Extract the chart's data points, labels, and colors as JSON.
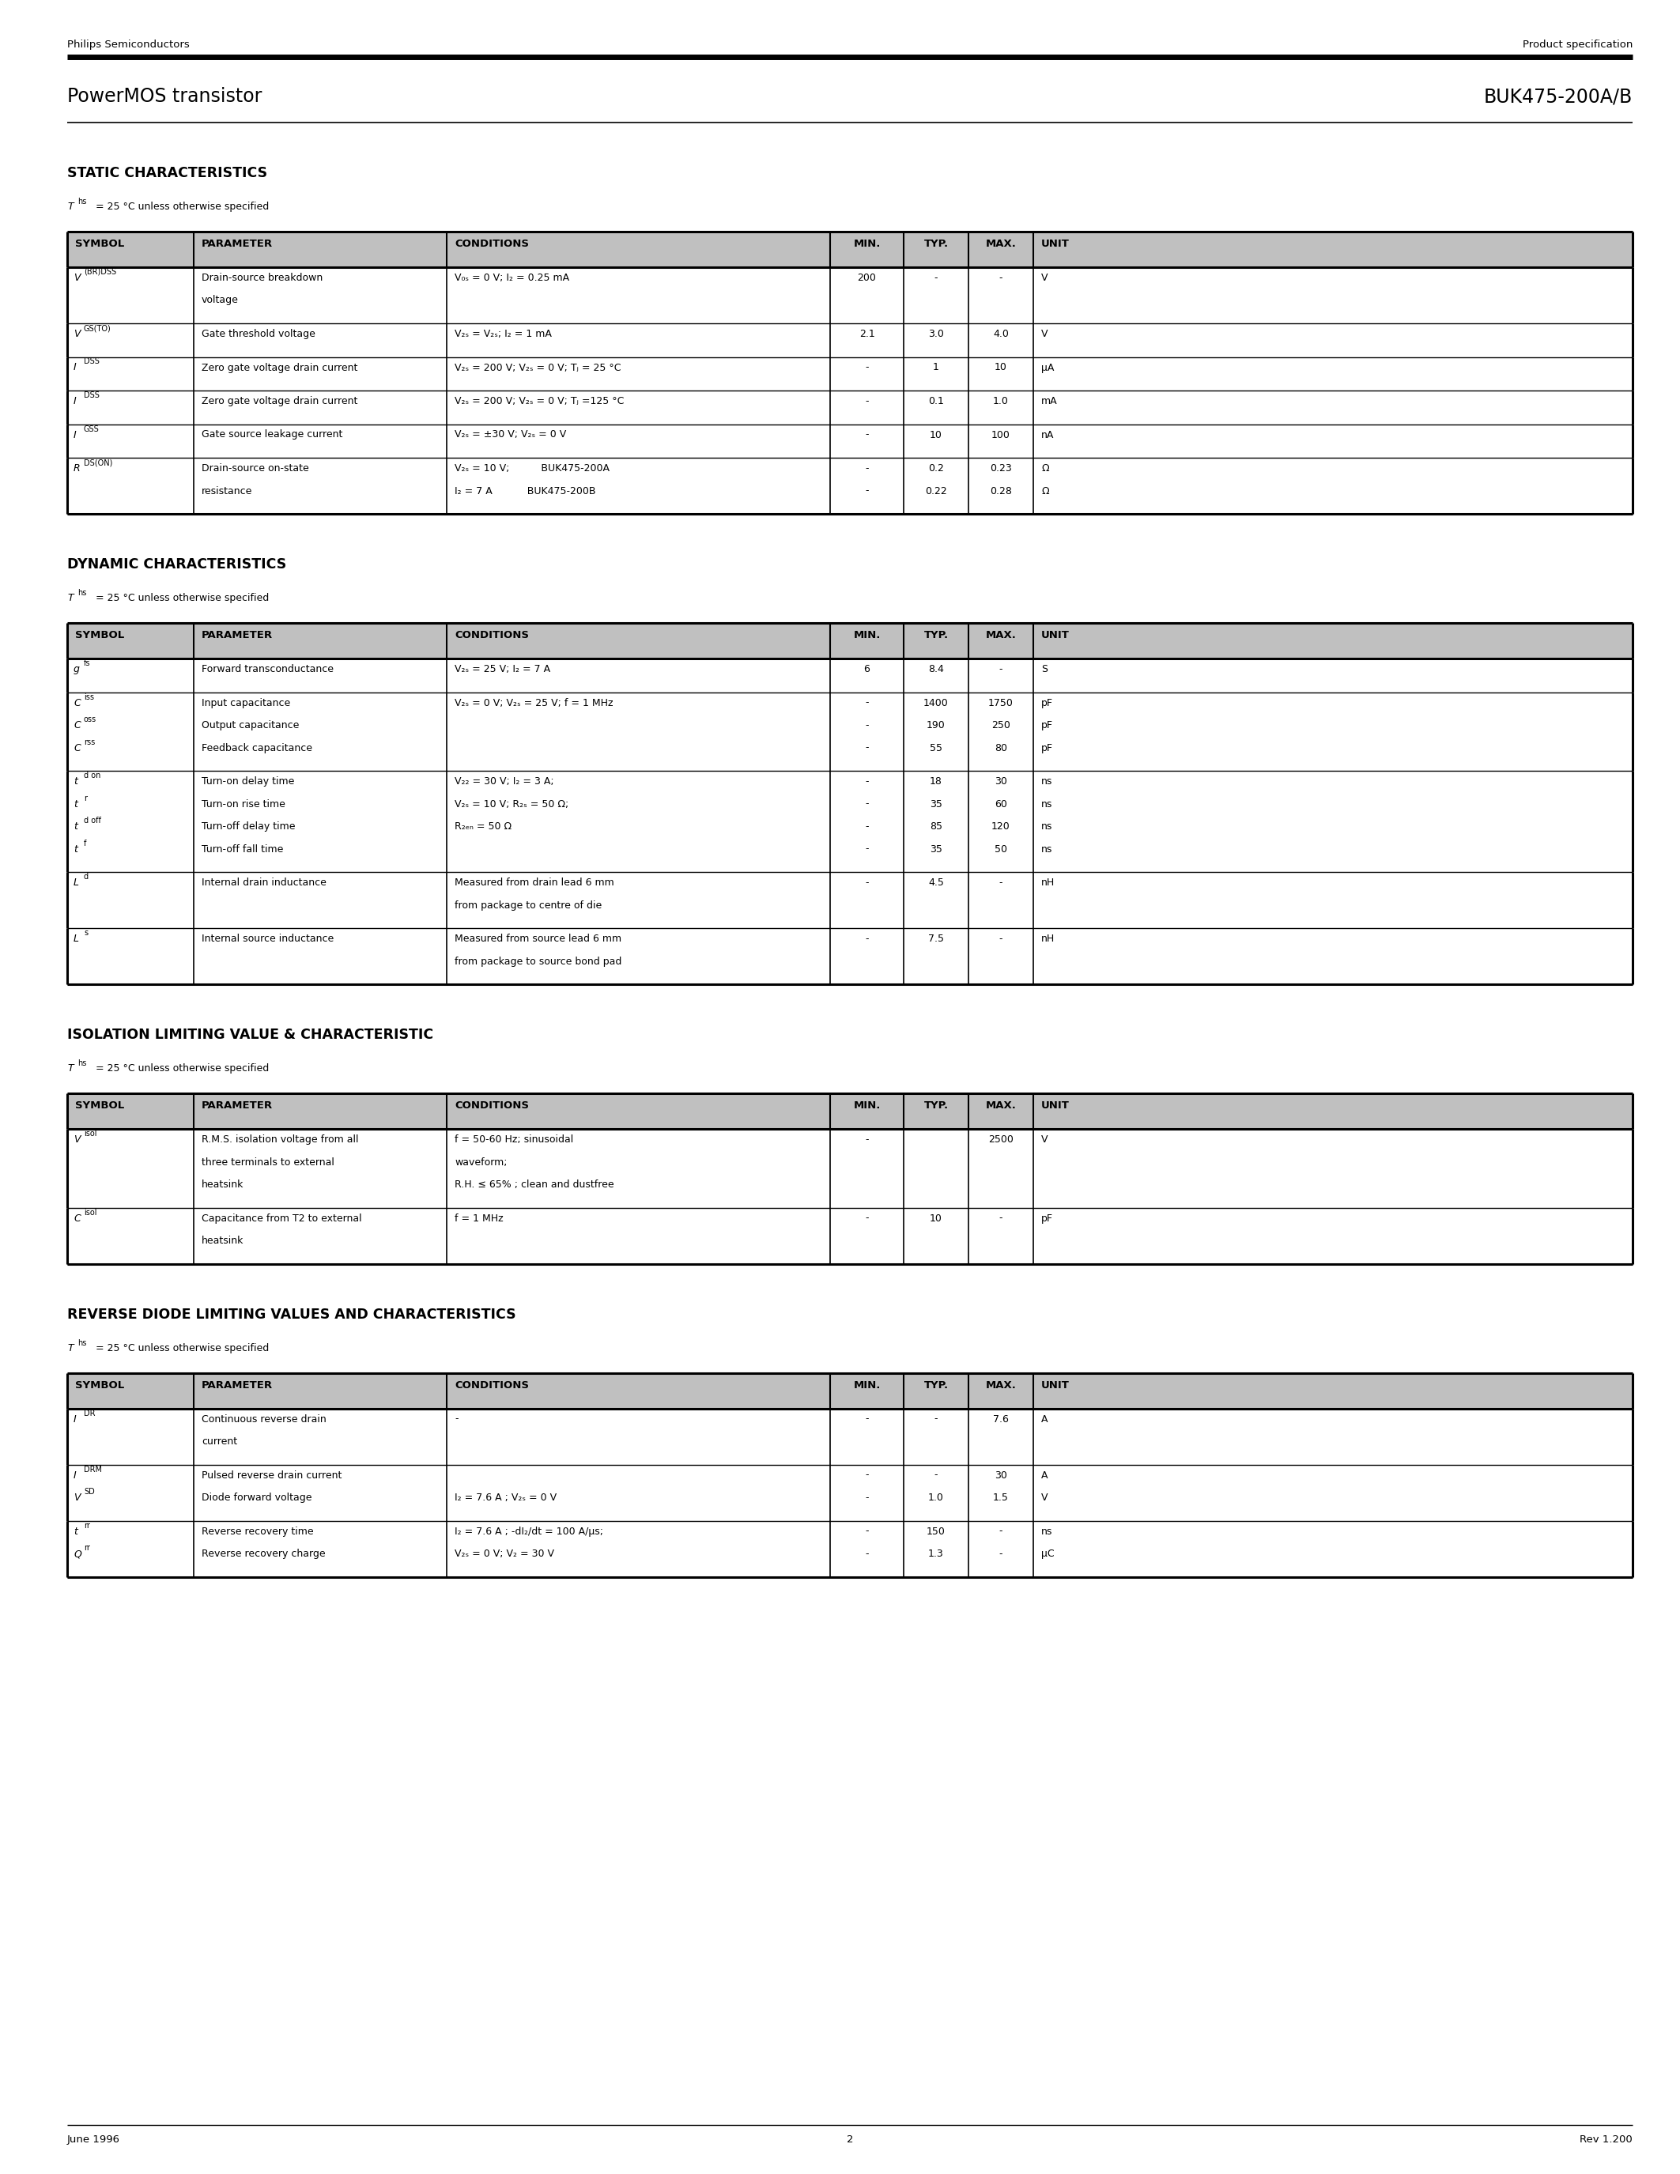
{
  "header_left": "Philips Semiconductors",
  "header_right": "Product specification",
  "title_left": "PowerMOS transistor",
  "title_right": "BUK475-200A/B",
  "footer_left": "June 1996",
  "footer_center": "2",
  "footer_right": "Rev 1.200",
  "section1_title": "STATIC CHARACTERISTICS",
  "section2_title": "DYNAMIC CHARACTERISTICS",
  "section3_title": "ISOLATION LIMITING VALUE & CHARACTERISTIC",
  "section4_title": "REVERSE DIODE LIMITING VALUES AND CHARACTERISTICS",
  "temp_note": " = 25 °C unless otherwise specified",
  "col_headers": [
    "SYMBOL",
    "PARAMETER",
    "CONDITIONS",
    "MIN.",
    "TYP.",
    "MAX.",
    "UNIT"
  ],
  "static_rows": [
    {
      "sym": "V",
      "sym_sub": "(BR)DSS",
      "param": [
        "Drain-source breakdown",
        "voltage"
      ],
      "cond": [
        "V₀ₛ = 0 V; I₂ = 0.25 mA"
      ],
      "min": [
        "200"
      ],
      "typ": [
        "-"
      ],
      "max": [
        "-"
      ],
      "unit": [
        "V"
      ]
    },
    {
      "sym": "V",
      "sym_sub": "GS(TO)",
      "param": [
        "Gate threshold voltage"
      ],
      "cond": [
        "V₂ₛ = V₂ₛ; I₂ = 1 mA"
      ],
      "min": [
        "2.1"
      ],
      "typ": [
        "3.0"
      ],
      "max": [
        "4.0"
      ],
      "unit": [
        "V"
      ]
    },
    {
      "sym": "I",
      "sym_sub": "DSS",
      "param": [
        "Zero gate voltage drain current"
      ],
      "cond": [
        "V₂ₛ = 200 V; V₂ₛ = 0 V; Tⱼ = 25 °C"
      ],
      "min": [
        "-"
      ],
      "typ": [
        "1"
      ],
      "max": [
        "10"
      ],
      "unit": [
        "μA"
      ]
    },
    {
      "sym": "I",
      "sym_sub": "DSS",
      "param": [
        "Zero gate voltage drain current"
      ],
      "cond": [
        "V₂ₛ = 200 V; V₂ₛ = 0 V; Tⱼ =125 °C"
      ],
      "min": [
        "-"
      ],
      "typ": [
        "0.1"
      ],
      "max": [
        "1.0"
      ],
      "unit": [
        "mA"
      ]
    },
    {
      "sym": "I",
      "sym_sub": "GSS",
      "param": [
        "Gate source leakage current"
      ],
      "cond": [
        "V₂ₛ = ±30 V; V₂ₛ = 0 V"
      ],
      "min": [
        "-"
      ],
      "typ": [
        "10"
      ],
      "max": [
        "100"
      ],
      "unit": [
        "nA"
      ]
    },
    {
      "sym": "R",
      "sym_sub": "DS(ON)",
      "param": [
        "Drain-source on-state",
        "resistance"
      ],
      "cond": [
        "V₂ₛ = 10 V;          BUK475-200A",
        "I₂ = 7 A           BUK475-200B"
      ],
      "min": [
        "-",
        "-"
      ],
      "typ": [
        "0.2",
        "0.22"
      ],
      "max": [
        "0.23",
        "0.28"
      ],
      "unit": [
        "Ω",
        "Ω"
      ]
    }
  ],
  "dynamic_rows": [
    {
      "sym": "g",
      "sym_sub": "fs",
      "param": [
        "Forward transconductance"
      ],
      "cond": [
        "V₂ₛ = 25 V; I₂ = 7 A"
      ],
      "min": [
        "6"
      ],
      "typ": [
        "8.4"
      ],
      "max": [
        "-"
      ],
      "unit": [
        "S"
      ]
    },
    {
      "sym_lines": [
        [
          "C",
          "iss"
        ],
        [
          "C",
          "oss"
        ],
        [
          "C",
          "rss"
        ]
      ],
      "param": [
        "Input capacitance",
        "Output capacitance",
        "Feedback capacitance"
      ],
      "cond": [
        "V₂ₛ = 0 V; V₂ₛ = 25 V; f = 1 MHz",
        "",
        ""
      ],
      "min": [
        "-",
        "-",
        "-"
      ],
      "typ": [
        "1400",
        "190",
        "55"
      ],
      "max": [
        "1750",
        "250",
        "80"
      ],
      "unit": [
        "pF",
        "pF",
        "pF"
      ]
    },
    {
      "sym_lines": [
        [
          "t",
          "d on"
        ],
        [
          "t",
          "r"
        ],
        [
          "t",
          "d off"
        ],
        [
          "t",
          "f"
        ]
      ],
      "param": [
        "Turn-on delay time",
        "Turn-on rise time",
        "Turn-off delay time",
        "Turn-off fall time"
      ],
      "cond": [
        "V₂₂ = 30 V; I₂ = 3 A;",
        "V₂ₛ = 10 V; R₂ₛ = 50 Ω;",
        "R₂ₑₙ = 50 Ω",
        ""
      ],
      "min": [
        "-",
        "-",
        "-",
        "-"
      ],
      "typ": [
        "18",
        "35",
        "85",
        "35"
      ],
      "max": [
        "30",
        "60",
        "120",
        "50"
      ],
      "unit": [
        "ns",
        "ns",
        "ns",
        "ns"
      ]
    },
    {
      "sym": "L",
      "sym_sub": "d",
      "param": [
        "Internal drain inductance"
      ],
      "cond": [
        "Measured from drain lead 6 mm",
        "from package to centre of die"
      ],
      "min": [
        "-"
      ],
      "typ": [
        "4.5"
      ],
      "max": [
        "-"
      ],
      "unit": [
        "nH"
      ]
    },
    {
      "sym": "L",
      "sym_sub": "s",
      "param": [
        "Internal source inductance"
      ],
      "cond": [
        "Measured from source lead 6 mm",
        "from package to source bond pad"
      ],
      "min": [
        "-"
      ],
      "typ": [
        "7.5"
      ],
      "max": [
        "-"
      ],
      "unit": [
        "nH"
      ]
    }
  ],
  "isolation_rows": [
    {
      "sym": "V",
      "sym_sub": "isol",
      "param": [
        "R.M.S. isolation voltage from all",
        "three terminals to external",
        "heatsink"
      ],
      "cond": [
        "f = 50-60 Hz; sinusoidal",
        "waveform;",
        "R.H. ≤ 65% ; clean and dustfree"
      ],
      "min": [
        "-",
        "",
        ""
      ],
      "typ": [
        "",
        "",
        ""
      ],
      "max": [
        "2500",
        "",
        ""
      ],
      "unit": [
        "V",
        "",
        ""
      ]
    },
    {
      "sym": "C",
      "sym_sub": "isol",
      "param": [
        "Capacitance from T2 to external",
        "heatsink"
      ],
      "cond": [
        "f = 1 MHz",
        ""
      ],
      "min": [
        "-",
        ""
      ],
      "typ": [
        "10",
        ""
      ],
      "max": [
        "-",
        ""
      ],
      "unit": [
        "pF",
        ""
      ]
    }
  ],
  "reverse_rows": [
    {
      "sym": "I",
      "sym_sub": "DR",
      "param": [
        "Continuous reverse drain",
        "current"
      ],
      "cond": [
        "-",
        ""
      ],
      "min": [
        "-",
        ""
      ],
      "typ": [
        "-",
        ""
      ],
      "max": [
        "7.6",
        ""
      ],
      "unit": [
        "A",
        ""
      ]
    },
    {
      "sym_lines": [
        [
          "I",
          "DRM"
        ],
        [
          "V",
          "SD"
        ]
      ],
      "param": [
        "Pulsed reverse drain current",
        "Diode forward voltage"
      ],
      "cond": [
        "",
        "I₂ = 7.6 A ; V₂ₛ = 0 V"
      ],
      "min": [
        "-",
        "-"
      ],
      "typ": [
        "-",
        "1.0"
      ],
      "max": [
        "30",
        "1.5"
      ],
      "unit": [
        "A",
        "V"
      ]
    },
    {
      "sym_lines": [
        [
          "t",
          "rr"
        ],
        [
          "Q",
          "rr"
        ]
      ],
      "param": [
        "Reverse recovery time",
        "Reverse recovery charge"
      ],
      "cond": [
        "I₂ = 7.6 A ; -dI₂/dt = 100 A/μs;",
        "V₂ₛ = 0 V; V₂ = 30 V"
      ],
      "min": [
        "-",
        "-"
      ],
      "typ": [
        "150",
        "1.3"
      ],
      "max": [
        "-",
        "-"
      ],
      "unit": [
        "ns",
        "μC"
      ]
    }
  ],
  "bg_color": "#ffffff"
}
